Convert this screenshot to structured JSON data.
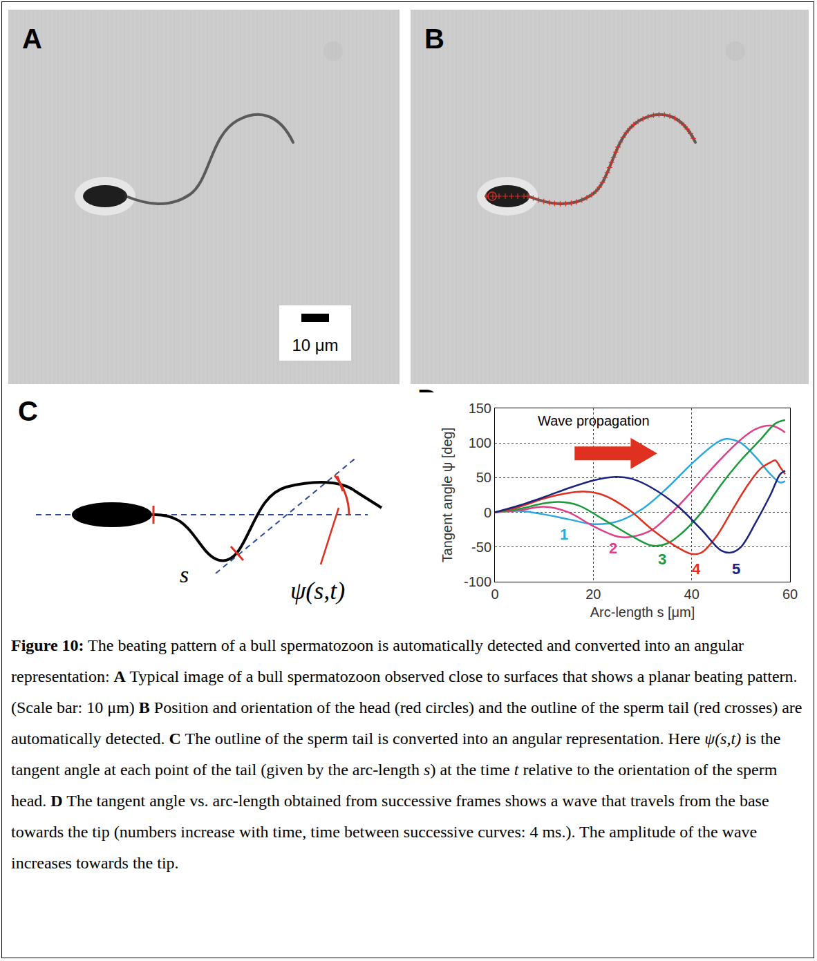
{
  "panels": {
    "A": {
      "label": "A",
      "scale_bar": "10 μm"
    },
    "B": {
      "label": "B"
    },
    "C": {
      "label": "C",
      "arc_length": "s",
      "angle": "ψ(s,t)"
    },
    "D": {
      "label": "D"
    }
  },
  "chart_data": {
    "type": "line",
    "x_label": "Arc-length s [μm]",
    "y_label": "Tangent angle ψ [deg]",
    "annotation": "Wave propagation",
    "xlim": [
      0,
      60
    ],
    "xticks": [
      0,
      20,
      40,
      60
    ],
    "ylim": [
      -100,
      150
    ],
    "yticks": [
      -100,
      -50,
      0,
      50,
      100,
      150
    ],
    "grid": true,
    "series": [
      {
        "name": "1",
        "color": "#29a8e0",
        "label_x": 14,
        "label_y": -32,
        "x": [
          0,
          5,
          10,
          15,
          20,
          25,
          30,
          35,
          40,
          45,
          47,
          50,
          53,
          56,
          58,
          59
        ],
        "values": [
          0,
          2,
          -3,
          -10,
          -17,
          -13,
          5,
          35,
          70,
          100,
          106,
          100,
          80,
          55,
          43,
          45
        ]
      },
      {
        "name": "2",
        "color": "#e0408a",
        "label_x": 24,
        "label_y": -52,
        "x": [
          0,
          5,
          10,
          15,
          20,
          25,
          28,
          32,
          36,
          40,
          45,
          50,
          53,
          56,
          58,
          59
        ],
        "values": [
          0,
          3,
          8,
          0,
          -20,
          -35,
          -35,
          -25,
          0,
          30,
          70,
          105,
          120,
          125,
          120,
          115
        ]
      },
      {
        "name": "3",
        "color": "#1a9a3a",
        "label_x": 34,
        "label_y": -68,
        "x": [
          0,
          5,
          10,
          13,
          17,
          22,
          28,
          32,
          35,
          38,
          42,
          46,
          50,
          54,
          57,
          59
        ],
        "values": [
          0,
          5,
          13,
          15,
          10,
          -10,
          -35,
          -48,
          -45,
          -30,
          0,
          40,
          75,
          105,
          128,
          133
        ]
      },
      {
        "name": "4",
        "color": "#e0301e",
        "label_x": 41,
        "label_y": -82,
        "x": [
          0,
          5,
          10,
          15,
          18,
          22,
          27,
          32,
          37,
          40,
          42,
          45,
          48,
          51,
          54,
          56,
          57,
          58,
          59
        ],
        "values": [
          0,
          8,
          20,
          28,
          30,
          25,
          5,
          -25,
          -50,
          -60,
          -58,
          -35,
          0,
          35,
          63,
          72,
          75,
          65,
          55
        ]
      },
      {
        "name": "5",
        "color": "#1a237e",
        "label_x": 49,
        "label_y": -82,
        "x": [
          0,
          5,
          10,
          15,
          20,
          24,
          28,
          32,
          37,
          42,
          46,
          48,
          50,
          53,
          56,
          58,
          59
        ],
        "values": [
          0,
          10,
          22,
          35,
          46,
          51,
          48,
          35,
          10,
          -25,
          -55,
          -58,
          -50,
          -15,
          25,
          55,
          60
        ]
      }
    ]
  },
  "caption": [
    {
      "text": "Figure 10:",
      "style": "bold"
    },
    {
      "text": " The beating pattern of a bull spermatozoon is automatically detected and converted into an angular representation: ",
      "style": "normal"
    },
    {
      "text": "A",
      "style": "bold"
    },
    {
      "text": " Typical image of a bull spermatozoon observed close to surfaces that shows a planar beating pattern. (Scale bar: 10 μm) ",
      "style": "normal"
    },
    {
      "text": "B",
      "style": "bold"
    },
    {
      "text": " Position and orientation of the head (red circles) and the outline of the sperm tail (red crosses) are automatically detected. ",
      "style": "normal"
    },
    {
      "text": "C",
      "style": "bold"
    },
    {
      "text": " The outline of the sperm tail is converted into an angular representation. Here ",
      "style": "normal"
    },
    {
      "text": "ψ(s,t)",
      "style": "italic"
    },
    {
      "text": " is the tangent angle at each point of the tail (given by the arc-length ",
      "style": "normal"
    },
    {
      "text": "s",
      "style": "italic"
    },
    {
      "text": ") at the time ",
      "style": "normal"
    },
    {
      "text": "t",
      "style": "italic"
    },
    {
      "text": " relative to the orientation of the sperm head. ",
      "style": "normal"
    },
    {
      "text": "D",
      "style": "bold"
    },
    {
      "text": " The tangent angle vs. arc-length obtained from successive frames shows a wave that travels from the base towards the tip (numbers increase with time, time between successive curves: 4 ms.). The amplitude of the wave increases towards the tip.",
      "style": "normal"
    }
  ]
}
